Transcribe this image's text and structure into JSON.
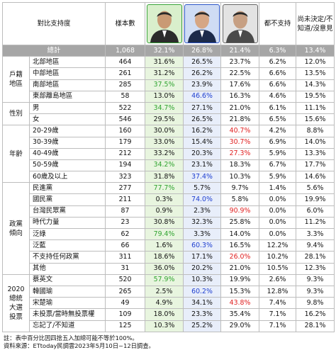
{
  "header": {
    "label": "對比支持度",
    "sample": "樣本數",
    "none": "都不支持",
    "undecided": "尚未決定/不知道/沒意見",
    "candidates": [
      {
        "border": "#3aa33a",
        "bg": "#d9efcc",
        "suit": "#2b2b2b",
        "face": "#c99a74"
      },
      {
        "border": "#2d56c8",
        "bg": "#cfdcf4",
        "suit": "#1c2a4a",
        "face": "#d6a684"
      },
      {
        "border": "#666666",
        "bg": "#e3e3e3",
        "suit": "#4a4a4a",
        "face": "#c7a083"
      }
    ]
  },
  "total": {
    "label": "總計",
    "n": "1,068",
    "v": [
      "32.1%",
      "26.8%",
      "21.4%",
      "6.3%",
      "13.4%"
    ]
  },
  "groups": [
    {
      "name": "戶籍\n地區",
      "rows": [
        {
          "label": "北部地區",
          "n": "464",
          "v": [
            "31.6%",
            "26.5%",
            "23.7%",
            "6.2%",
            "12.0%"
          ],
          "hl": [
            null,
            null,
            null
          ]
        },
        {
          "label": "中部地區",
          "n": "261",
          "v": [
            "31.2%",
            "26.2%",
            "22.5%",
            "6.6%",
            "13.5%"
          ],
          "hl": [
            null,
            null,
            null
          ]
        },
        {
          "label": "南部地區",
          "n": "285",
          "v": [
            "37.5%",
            "23.9%",
            "17.6%",
            "6.6%",
            "14.3%"
          ],
          "hl": [
            "g",
            null,
            null
          ]
        },
        {
          "label": "東部離島地區",
          "n": "58",
          "v": [
            "13.0%",
            "46.6%",
            "16.3%",
            "4.6%",
            "19.5%"
          ],
          "hl": [
            null,
            "b",
            null
          ]
        }
      ]
    },
    {
      "name": "性別",
      "rows": [
        {
          "label": "男",
          "n": "522",
          "v": [
            "34.7%",
            "27.1%",
            "21.0%",
            "6.1%",
            "11.1%"
          ],
          "hl": [
            "g",
            null,
            null
          ]
        },
        {
          "label": "女",
          "n": "546",
          "v": [
            "29.5%",
            "26.5%",
            "21.8%",
            "6.5%",
            "15.6%"
          ],
          "hl": [
            null,
            null,
            null
          ]
        }
      ]
    },
    {
      "name": "年齡",
      "rows": [
        {
          "label": "20-29歲",
          "n": "160",
          "v": [
            "30.0%",
            "16.2%",
            "40.7%",
            "4.2%",
            "8.8%"
          ],
          "hl": [
            null,
            null,
            "r"
          ]
        },
        {
          "label": "30-39歲",
          "n": "179",
          "v": [
            "33.0%",
            "15.4%",
            "30.7%",
            "6.9%",
            "14.0%"
          ],
          "hl": [
            null,
            null,
            "r"
          ]
        },
        {
          "label": "40-49歲",
          "n": "212",
          "v": [
            "33.2%",
            "20.3%",
            "27.3%",
            "5.9%",
            "13.3%"
          ],
          "hl": [
            null,
            null,
            "r"
          ]
        },
        {
          "label": "50-59歲",
          "n": "194",
          "v": [
            "34.2%",
            "23.1%",
            "18.3%",
            "6.7%",
            "17.7%"
          ],
          "hl": [
            "g",
            null,
            null
          ]
        },
        {
          "label": "60歲及以上",
          "n": "323",
          "v": [
            "31.8%",
            "37.4%",
            "10.3%",
            "5.9%",
            "14.6%"
          ],
          "hl": [
            null,
            "b",
            null
          ]
        }
      ]
    },
    {
      "name": "政黨\n傾向",
      "rows": [
        {
          "label": "民進黨",
          "n": "277",
          "v": [
            "77.7%",
            "5.7%",
            "9.7%",
            "1.4%",
            "5.6%"
          ],
          "hl": [
            "g",
            null,
            null
          ]
        },
        {
          "label": "國民黨",
          "n": "211",
          "v": [
            "0.3%",
            "74.0%",
            "5.8%",
            "0.0%",
            "19.9%"
          ],
          "hl": [
            null,
            "b",
            null
          ]
        },
        {
          "label": "台灣民眾黨",
          "n": "87",
          "v": [
            "0.9%",
            "2.3%",
            "90.9%",
            "0.0%",
            "6.0%"
          ],
          "hl": [
            null,
            null,
            "r"
          ]
        },
        {
          "label": "時代力量",
          "n": "23",
          "v": [
            "30.8%",
            "32.3%",
            "25.8%",
            "0.0%",
            "11.2%"
          ],
          "hl": [
            null,
            null,
            null
          ]
        },
        {
          "label": "泛綠",
          "n": "62",
          "v": [
            "79.4%",
            "3.3%",
            "14.0%",
            "0.0%",
            "3.3%"
          ],
          "hl": [
            "g",
            null,
            null
          ]
        },
        {
          "label": "泛藍",
          "n": "66",
          "v": [
            "1.6%",
            "60.3%",
            "16.5%",
            "12.2%",
            "9.4%"
          ],
          "hl": [
            null,
            "b",
            null
          ]
        },
        {
          "label": "不支持任何政黨",
          "n": "311",
          "v": [
            "18.6%",
            "17.1%",
            "26.0%",
            "10.2%",
            "28.1%"
          ],
          "hl": [
            null,
            null,
            "r"
          ]
        },
        {
          "label": "其他",
          "n": "31",
          "v": [
            "36.0%",
            "20.2%",
            "21.0%",
            "10.5%",
            "12.3%"
          ],
          "hl": [
            null,
            null,
            null
          ]
        }
      ]
    },
    {
      "name": "2020\n總統\n大選\n投票",
      "rows": [
        {
          "label": "蔡英文",
          "n": "520",
          "v": [
            "57.9%",
            "10.3%",
            "19.9%",
            "2.6%",
            "9.3%"
          ],
          "hl": [
            "g",
            null,
            null
          ]
        },
        {
          "label": "韓國瑜",
          "n": "265",
          "v": [
            "2.5%",
            "60.2%",
            "15.3%",
            "12.8%",
            "9.3%"
          ],
          "hl": [
            null,
            "b",
            null
          ]
        },
        {
          "label": "宋楚瑜",
          "n": "49",
          "v": [
            "4.9%",
            "34.1%",
            "43.8%",
            "7.4%",
            "9.8%"
          ],
          "hl": [
            null,
            null,
            "r"
          ]
        },
        {
          "label": "未投票/當時無投票權",
          "n": "109",
          "v": [
            "18.0%",
            "23.3%",
            "35.4%",
            "7.1%",
            "16.2%"
          ],
          "hl": [
            null,
            null,
            null
          ]
        },
        {
          "label": "忘記了/不知道",
          "n": "125",
          "v": [
            "10.3%",
            "25.2%",
            "29.0%",
            "7.1%",
            "28.1%"
          ],
          "hl": [
            null,
            null,
            null
          ]
        }
      ]
    }
  ],
  "notes": [
    "註：表中百分比因四捨五入加總可能不等於100%。",
    "資料來源：ETtoday民調雲2023年5月10日~12日調查。"
  ]
}
